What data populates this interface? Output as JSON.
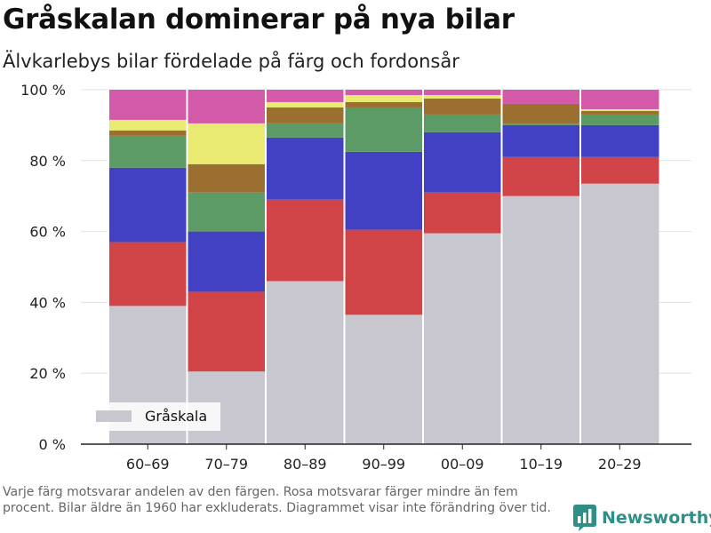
{
  "title": "Gråskalan dominerar på nya bilar",
  "subtitle": "Älvkarlebys bilar fördelade på färg och fordonsår",
  "footnote": "Varje färg motsvarar andelen av den färgen. Rosa motsvarar färger mindre än fem procent. Bilar äldre än 1960 har exkluderats. Diagrammet visar inte förändring över tid.",
  "brand": {
    "name": "Newsworthy",
    "color": "#2f8f86"
  },
  "chart_data": {
    "type": "bar",
    "stacked": true,
    "categories": [
      "60–69",
      "70–79",
      "80–89",
      "90–99",
      "00–09",
      "10–19",
      "20–29"
    ],
    "ylim": [
      0,
      100
    ],
    "yticks": [
      0,
      20,
      40,
      60,
      80,
      100
    ],
    "ytick_labels": [
      "0 %",
      "20 %",
      "40 %",
      "60 %",
      "80 %",
      "100 %"
    ],
    "grid": true,
    "legend": {
      "position": "bottom-left",
      "entries": [
        "Gråskala"
      ]
    },
    "series": [
      {
        "name": "Gråskala",
        "color": "#c8c7d0",
        "values": [
          39,
          20.5,
          46,
          36.5,
          59.5,
          70,
          73.5
        ]
      },
      {
        "color": "#d04347",
        "values": [
          18,
          22.5,
          23,
          24,
          11.5,
          11,
          7.5
        ]
      },
      {
        "color": "#4341c3",
        "values": [
          21,
          17,
          17.5,
          22,
          17,
          9,
          9
        ]
      },
      {
        "color": "#5d9b66",
        "values": [
          9,
          11,
          4,
          12.5,
          5,
          0.5,
          3
        ]
      },
      {
        "color": "#9a6f30",
        "values": [
          1.5,
          8,
          4.5,
          1.5,
          4.5,
          5.5,
          1
        ]
      },
      {
        "color": "#e8ea72",
        "values": [
          3,
          11.5,
          1.5,
          2,
          1,
          0,
          0.5
        ]
      },
      {
        "color": "#d35aa8",
        "values": [
          8.5,
          9.5,
          3.5,
          1.5,
          1.5,
          4,
          5.5
        ]
      }
    ]
  }
}
